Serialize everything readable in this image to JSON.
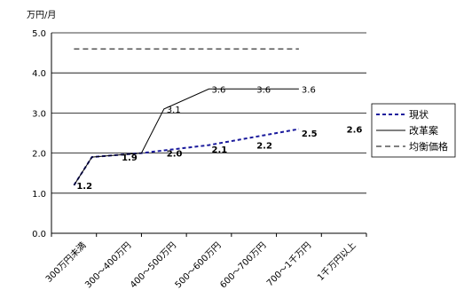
{
  "chart_data": {
    "type": "line",
    "unit_label": "万円/月",
    "categories": [
      "300万円未満",
      "300～400万円",
      "400～500万円",
      "500～600万円",
      "600～700万円",
      "700～1千万円",
      "1千万円以上"
    ],
    "ylim": [
      0,
      5
    ],
    "yticks": [
      "0.0",
      "1.0",
      "2.0",
      "3.0",
      "4.0",
      "5.0"
    ],
    "grid": true,
    "legend_position": "right",
    "series": [
      {
        "name": "現状",
        "style": "dotted",
        "color": "#1a1a9c",
        "points": [
          [
            0,
            1.2
          ],
          [
            0.4,
            1.9
          ],
          [
            1.5,
            2.0
          ],
          [
            3.0,
            2.2
          ],
          [
            5.0,
            2.6
          ]
        ],
        "labels": [
          {
            "x": 0,
            "y": 1.2,
            "text": "1.2"
          },
          {
            "x": 1,
            "y": 1.9,
            "text": "1.9"
          },
          {
            "x": 2,
            "y": 2.0,
            "text": "2.0"
          },
          {
            "x": 3,
            "y": 2.1,
            "text": "2.1"
          },
          {
            "x": 4,
            "y": 2.2,
            "text": "2.2"
          },
          {
            "x": 5,
            "y": 2.5,
            "text": "2.5"
          },
          {
            "x": 6,
            "y": 2.6,
            "text": "2.6"
          }
        ]
      },
      {
        "name": "改革案",
        "style": "solid",
        "color": "#000000",
        "points": [
          [
            0,
            1.2
          ],
          [
            0.4,
            1.9
          ],
          [
            1.5,
            2.0
          ],
          [
            2.0,
            3.1
          ],
          [
            3.0,
            3.6
          ],
          [
            5.0,
            3.6
          ]
        ],
        "labels": [
          {
            "x": 2,
            "y": 3.1,
            "text": "3.1"
          },
          {
            "x": 3,
            "y": 3.6,
            "text": "3.6"
          },
          {
            "x": 4,
            "y": 3.6,
            "text": "3.6"
          },
          {
            "x": 5,
            "y": 3.6,
            "text": "3.6"
          }
        ]
      },
      {
        "name": "均衡価格",
        "style": "dashed",
        "color": "#000000",
        "points": [
          [
            0,
            4.6
          ],
          [
            5.0,
            4.6
          ]
        ],
        "labels": []
      }
    ]
  }
}
